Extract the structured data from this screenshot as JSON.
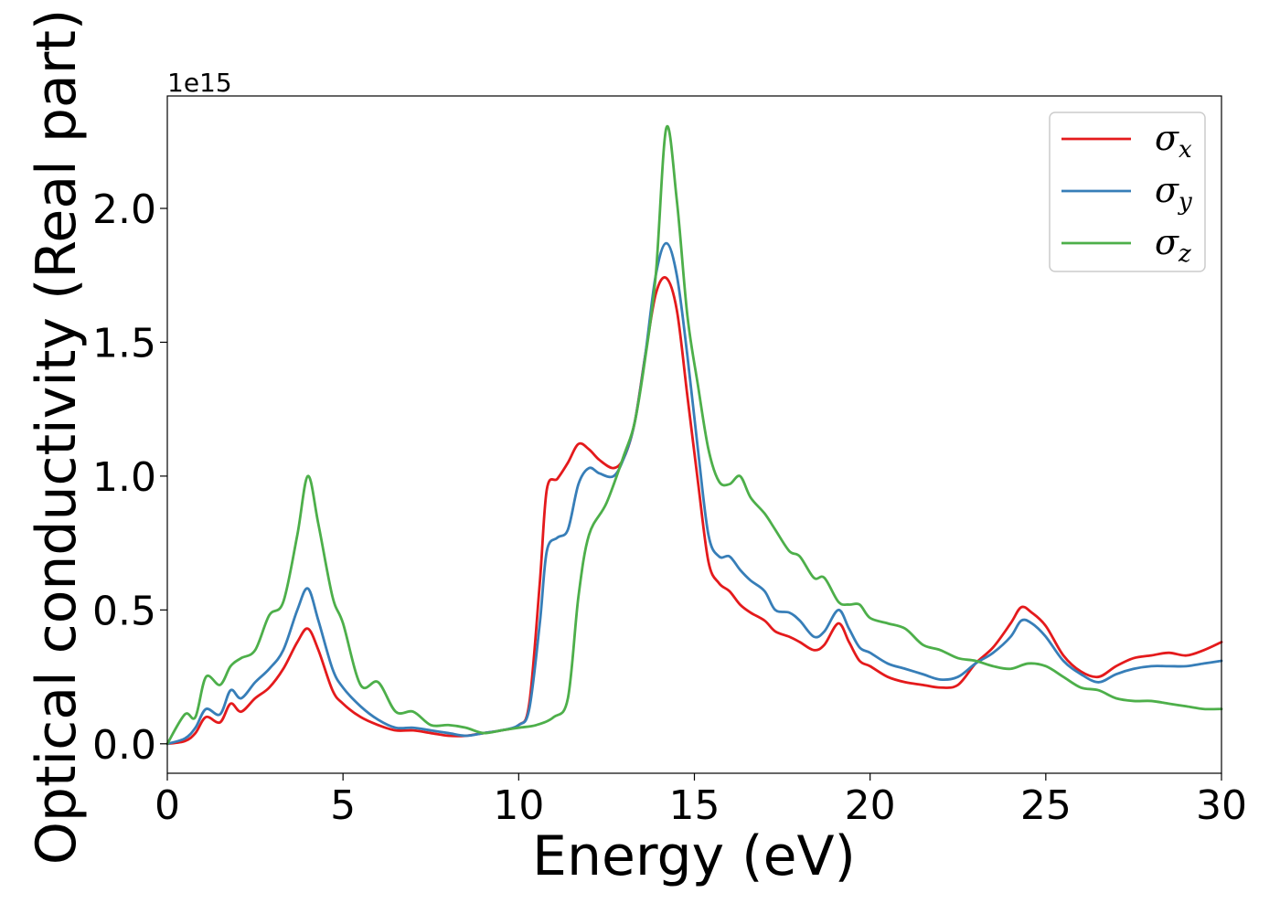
{
  "chart_data": {
    "type": "line",
    "title": "",
    "xlabel": "Energy (eV)",
    "ylabel": "Optical conductivity (Real part)",
    "y_multiplier_label": "1e15",
    "xlim": [
      0,
      30
    ],
    "ylim": [
      -0.11,
      2.42
    ],
    "x_ticks": [
      0,
      5,
      10,
      15,
      20,
      25,
      30
    ],
    "x_tick_labels": [
      "0",
      "5",
      "10",
      "15",
      "20",
      "25",
      "30"
    ],
    "y_ticks": [
      0.0,
      0.5,
      1.0,
      1.5,
      2.0
    ],
    "y_tick_labels": [
      "0.0",
      "0.5",
      "1.0",
      "1.5",
      "2.0"
    ],
    "grid": false,
    "legend_position": "top-right",
    "series": [
      {
        "name": "σx",
        "legend_base": "σ",
        "legend_sub": "x",
        "color": "#e41a1c",
        "x": [
          0,
          0.5,
          0.8,
          1.1,
          1.5,
          1.8,
          2.1,
          2.5,
          2.9,
          3.3,
          3.7,
          4.0,
          4.3,
          4.7,
          5.0,
          5.5,
          6.0,
          6.5,
          7.0,
          7.5,
          8.0,
          8.5,
          9.0,
          9.5,
          10.0,
          10.3,
          10.6,
          10.8,
          11.1,
          11.4,
          11.7,
          12.0,
          12.3,
          12.7,
          13.0,
          13.3,
          13.6,
          13.9,
          14.2,
          14.5,
          14.8,
          15.1,
          15.4,
          15.7,
          16.0,
          16.3,
          16.6,
          17.0,
          17.3,
          17.7,
          18.0,
          18.4,
          18.7,
          19.1,
          19.4,
          19.7,
          20.0,
          20.5,
          21.0,
          21.5,
          22.0,
          22.5,
          23.0,
          23.5,
          24.0,
          24.3,
          24.6,
          25.0,
          25.5,
          26.0,
          26.5,
          27.0,
          27.5,
          28.0,
          28.5,
          29.0,
          29.5,
          30.0
        ],
        "values": [
          0.0,
          0.01,
          0.04,
          0.1,
          0.08,
          0.15,
          0.12,
          0.17,
          0.21,
          0.28,
          0.38,
          0.43,
          0.35,
          0.2,
          0.15,
          0.1,
          0.07,
          0.05,
          0.05,
          0.04,
          0.03,
          0.03,
          0.04,
          0.05,
          0.07,
          0.15,
          0.6,
          0.95,
          0.99,
          1.05,
          1.12,
          1.1,
          1.06,
          1.03,
          1.07,
          1.2,
          1.45,
          1.68,
          1.74,
          1.62,
          1.3,
          0.98,
          0.68,
          0.6,
          0.57,
          0.52,
          0.49,
          0.46,
          0.42,
          0.4,
          0.38,
          0.35,
          0.37,
          0.45,
          0.38,
          0.31,
          0.29,
          0.25,
          0.23,
          0.22,
          0.21,
          0.22,
          0.3,
          0.36,
          0.45,
          0.51,
          0.49,
          0.44,
          0.33,
          0.27,
          0.25,
          0.29,
          0.32,
          0.33,
          0.34,
          0.33,
          0.35,
          0.38
        ]
      },
      {
        "name": "σy",
        "legend_base": "σ",
        "legend_sub": "y",
        "color": "#377eb8",
        "x": [
          0,
          0.5,
          0.8,
          1.1,
          1.5,
          1.8,
          2.1,
          2.5,
          2.9,
          3.3,
          3.7,
          4.0,
          4.3,
          4.7,
          5.0,
          5.5,
          6.0,
          6.5,
          7.0,
          7.5,
          8.0,
          8.5,
          9.0,
          9.5,
          10.0,
          10.3,
          10.6,
          10.8,
          11.1,
          11.4,
          11.7,
          12.0,
          12.3,
          12.7,
          13.0,
          13.3,
          13.6,
          13.9,
          14.2,
          14.5,
          14.8,
          15.1,
          15.4,
          15.7,
          16.0,
          16.3,
          16.6,
          17.0,
          17.3,
          17.7,
          18.0,
          18.4,
          18.7,
          19.1,
          19.4,
          19.7,
          20.0,
          20.5,
          21.0,
          21.5,
          22.0,
          22.5,
          23.0,
          23.5,
          24.0,
          24.3,
          24.6,
          25.0,
          25.5,
          26.0,
          26.5,
          27.0,
          27.5,
          28.0,
          28.5,
          29.0,
          29.5,
          30.0
        ],
        "values": [
          0.0,
          0.02,
          0.06,
          0.13,
          0.11,
          0.2,
          0.17,
          0.23,
          0.28,
          0.35,
          0.5,
          0.58,
          0.46,
          0.28,
          0.21,
          0.14,
          0.09,
          0.06,
          0.06,
          0.05,
          0.04,
          0.03,
          0.04,
          0.05,
          0.07,
          0.13,
          0.45,
          0.72,
          0.77,
          0.8,
          0.97,
          1.03,
          1.01,
          1.0,
          1.07,
          1.2,
          1.45,
          1.75,
          1.87,
          1.75,
          1.45,
          1.1,
          0.78,
          0.7,
          0.7,
          0.65,
          0.61,
          0.57,
          0.5,
          0.49,
          0.46,
          0.4,
          0.42,
          0.5,
          0.43,
          0.36,
          0.34,
          0.3,
          0.28,
          0.26,
          0.24,
          0.25,
          0.3,
          0.34,
          0.4,
          0.46,
          0.45,
          0.4,
          0.31,
          0.26,
          0.23,
          0.26,
          0.28,
          0.29,
          0.29,
          0.29,
          0.3,
          0.31
        ]
      },
      {
        "name": "σz",
        "legend_base": "σ",
        "legend_sub": "z",
        "color": "#4daf4a",
        "x": [
          0,
          0.5,
          0.8,
          1.1,
          1.5,
          1.8,
          2.1,
          2.5,
          2.9,
          3.3,
          3.7,
          4.0,
          4.3,
          4.7,
          5.0,
          5.5,
          6.0,
          6.5,
          7.0,
          7.5,
          8.0,
          8.5,
          9.0,
          9.5,
          10.0,
          10.5,
          11.0,
          11.4,
          11.7,
          12.0,
          12.5,
          13.0,
          13.3,
          13.6,
          13.9,
          14.2,
          14.5,
          14.8,
          15.1,
          15.4,
          15.7,
          16.0,
          16.3,
          16.6,
          17.0,
          17.3,
          17.7,
          18.0,
          18.4,
          18.7,
          19.1,
          19.4,
          19.7,
          20.0,
          20.5,
          21.0,
          21.5,
          22.0,
          22.5,
          23.0,
          23.5,
          24.0,
          24.5,
          25.0,
          25.5,
          26.0,
          26.5,
          27.0,
          27.5,
          28.0,
          28.5,
          29.0,
          29.5,
          30.0
        ],
        "values": [
          0.0,
          0.11,
          0.1,
          0.25,
          0.22,
          0.29,
          0.32,
          0.35,
          0.48,
          0.53,
          0.78,
          1.0,
          0.82,
          0.55,
          0.45,
          0.22,
          0.23,
          0.12,
          0.12,
          0.07,
          0.07,
          0.06,
          0.04,
          0.05,
          0.06,
          0.07,
          0.1,
          0.17,
          0.55,
          0.78,
          0.9,
          1.08,
          1.2,
          1.44,
          1.75,
          2.3,
          2.03,
          1.6,
          1.34,
          1.1,
          0.98,
          0.97,
          1.0,
          0.92,
          0.86,
          0.8,
          0.72,
          0.7,
          0.62,
          0.62,
          0.53,
          0.52,
          0.52,
          0.47,
          0.45,
          0.43,
          0.37,
          0.35,
          0.32,
          0.31,
          0.29,
          0.28,
          0.3,
          0.29,
          0.25,
          0.21,
          0.2,
          0.17,
          0.16,
          0.16,
          0.15,
          0.14,
          0.13,
          0.13
        ]
      }
    ]
  }
}
